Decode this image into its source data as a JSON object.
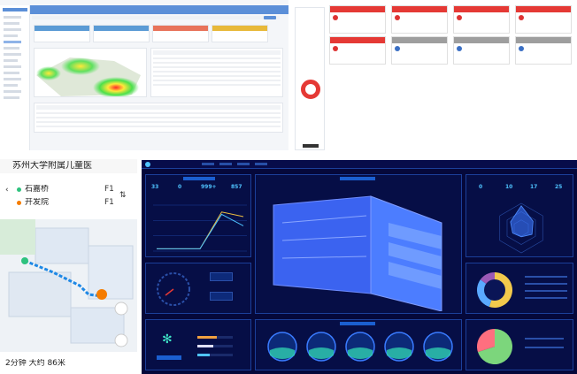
{
  "admin": {
    "header_title": "",
    "sidebar_items": [
      "",
      "",
      "",
      "",
      "",
      "",
      "",
      "",
      "",
      "",
      "",
      "",
      "",
      ""
    ],
    "kpi_colors": [
      "#5b9bd5",
      "#5b9bd5",
      "#e8735a",
      "#e8b93a"
    ],
    "table_headers": [
      "",
      "",
      "",
      "",
      "",
      "",
      "",
      ""
    ],
    "right_card_title": "",
    "accent": "#5b8fd8"
  },
  "tiles": {
    "header_colors": [
      "#e53935",
      "#e53935",
      "#e53935",
      "#e53935",
      "#e53935",
      "#9e9e9e",
      "#9e9e9e",
      "#9e9e9e"
    ]
  },
  "map": {
    "status_time": "",
    "address_title": "苏州大学附属儿童医",
    "route_from": "石嘉桥",
    "route_to": "开发院",
    "floor_label_1": "F1",
    "floor_label_2": "F1",
    "footer": "2分钟   大约 86米",
    "accent": "#1e88e5"
  },
  "dash": {
    "title": "",
    "nav": [
      "",
      "",
      "",
      ""
    ],
    "center_title": "",
    "kpis": [
      {
        "value": "33",
        "label": ""
      },
      {
        "value": "0",
        "label": ""
      },
      {
        "value": "999+",
        "label": ""
      },
      {
        "value": "857",
        "label": ""
      }
    ],
    "right_kpis": [
      {
        "value": "0",
        "label": ""
      },
      {
        "value": "10",
        "label": ""
      },
      {
        "value": "17",
        "label": ""
      },
      {
        "value": "25",
        "label": ""
      }
    ],
    "gauges": [
      "",
      "",
      "",
      "",
      ""
    ],
    "line_chart": {
      "type": "line",
      "x": [
        1,
        2,
        3,
        4,
        5
      ],
      "series": [
        {
          "values": [
            5,
            5,
            5,
            85,
            75
          ],
          "color": "#f0c040"
        },
        {
          "values": [
            5,
            5,
            5,
            80,
            55
          ],
          "color": "#4fc3ff"
        }
      ],
      "ylim": [
        0,
        100
      ]
    },
    "radar": {
      "type": "radar",
      "values": [
        0.9,
        0.55,
        0.5,
        0.35,
        0.4,
        0.5
      ]
    },
    "donut": {
      "type": "pie",
      "values": [
        55,
        30,
        15
      ],
      "colors": [
        "#f2c94c",
        "#5aa9ff",
        "#9b59b6"
      ]
    },
    "pie": {
      "type": "pie",
      "values": [
        70,
        30
      ],
      "colors": [
        "#7cd67c",
        "#ff6f7f"
      ]
    },
    "progress": [
      0.55,
      0.45,
      0.35
    ]
  },
  "chart_data": [
    {
      "type": "line",
      "x": [
        1,
        2,
        3,
        4,
        5
      ],
      "series": [
        {
          "values": [
            5,
            5,
            5,
            85,
            75
          ]
        },
        {
          "values": [
            5,
            5,
            5,
            80,
            55
          ]
        }
      ],
      "ylim": [
        0,
        100
      ]
    },
    {
      "type": "pie",
      "values": [
        55,
        30,
        15
      ]
    },
    {
      "type": "pie",
      "values": [
        70,
        30
      ]
    }
  ]
}
